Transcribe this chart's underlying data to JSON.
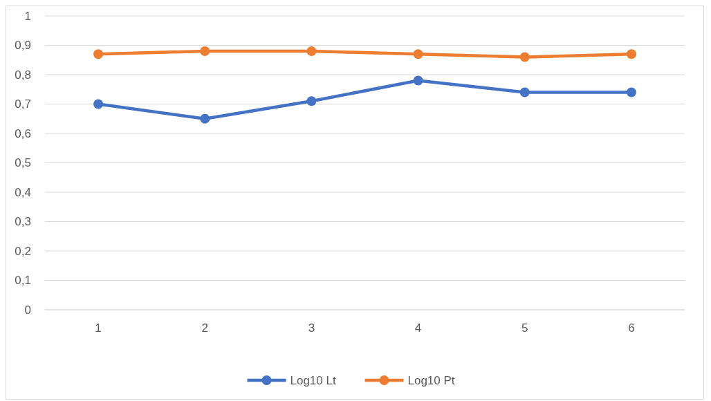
{
  "chart_data": {
    "type": "line",
    "categories": [
      "1",
      "2",
      "3",
      "4",
      "5",
      "6"
    ],
    "series": [
      {
        "name": "Log10 Lt",
        "color": "#4472c4",
        "values": [
          0.7,
          0.65,
          0.71,
          0.78,
          0.74,
          0.74
        ]
      },
      {
        "name": "Log10 Pt",
        "color": "#ed7d31",
        "values": [
          0.87,
          0.88,
          0.88,
          0.87,
          0.86,
          0.87
        ]
      }
    ],
    "ylim": [
      0,
      1
    ],
    "yticks": [
      0,
      {
        "value": 0.1,
        "label": "0,1"
      },
      {
        "value": 0.2,
        "label": "0,2"
      },
      {
        "value": 0.3,
        "label": "0,3"
      },
      {
        "value": 0.4,
        "label": "0,4"
      },
      {
        "value": 0.5,
        "label": "0,5"
      },
      {
        "value": 0.6,
        "label": "0,6"
      },
      {
        "value": 0.7,
        "label": "0,7"
      },
      {
        "value": 0.8,
        "label": "0,8"
      },
      {
        "value": 0.9,
        "label": "0,9"
      },
      1
    ],
    "grid": "y",
    "legend": "bottom",
    "marker": "circle",
    "line_style": "solid"
  }
}
